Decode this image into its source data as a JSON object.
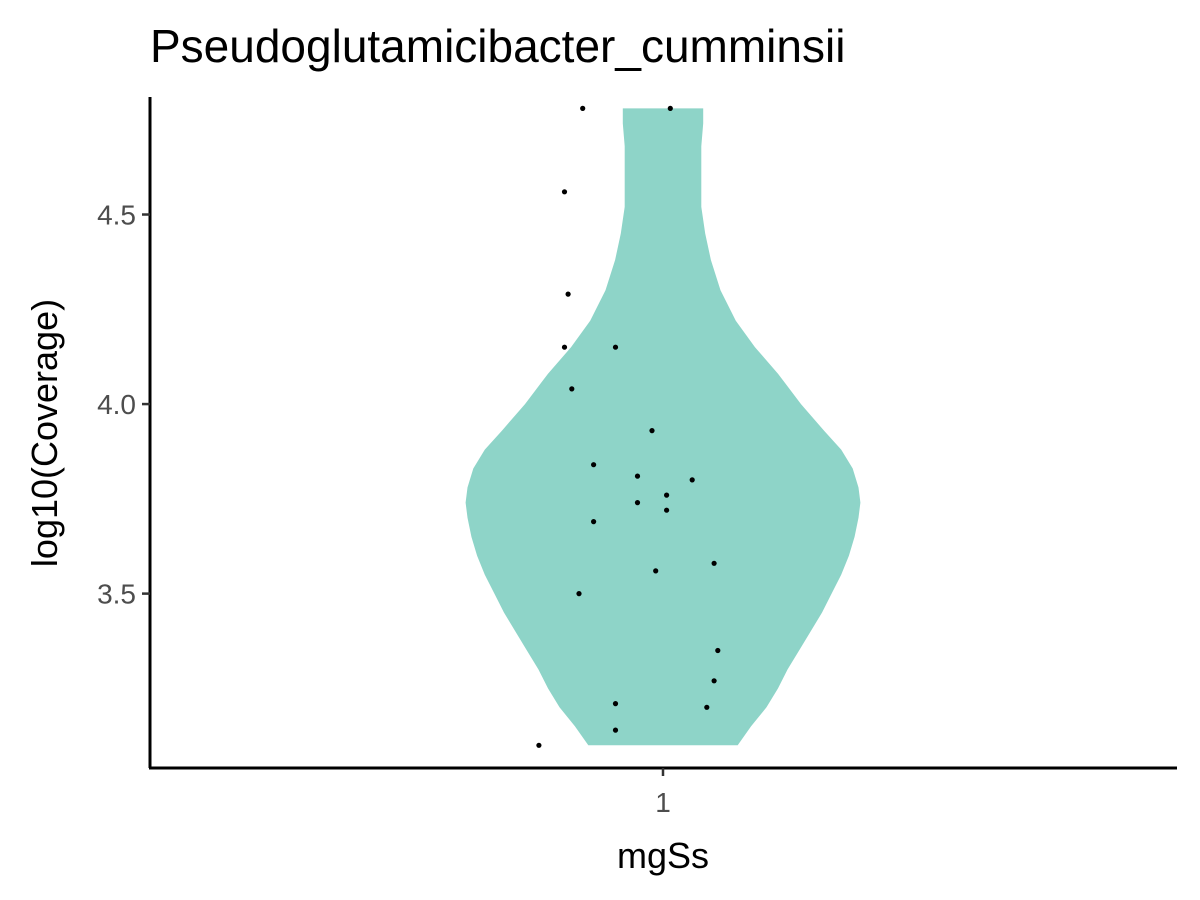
{
  "chart_data": {
    "type": "violin",
    "title": "Pseudoglutamicibacter_cumminsii",
    "xlabel": "mgSs",
    "ylabel": "log10(Coverage)",
    "categories": [
      "1"
    ],
    "y_ticks": [
      3.5,
      4.0,
      4.5
    ],
    "y_tick_labels": [
      "3.5",
      "4.0",
      "4.5"
    ],
    "ylim": [
      3.04,
      4.81
    ],
    "grid": false,
    "legend": "none",
    "violin_fill": "#8ed4c8",
    "point_color": "#000000",
    "violin_range": [
      3.1,
      4.78
    ],
    "violin_profile": [
      {
        "y": 3.1,
        "width": 0.39
      },
      {
        "y": 3.15,
        "width": 0.46
      },
      {
        "y": 3.2,
        "width": 0.54
      },
      {
        "y": 3.25,
        "width": 0.6
      },
      {
        "y": 3.3,
        "width": 0.65
      },
      {
        "y": 3.35,
        "width": 0.71
      },
      {
        "y": 3.4,
        "width": 0.77
      },
      {
        "y": 3.45,
        "width": 0.83
      },
      {
        "y": 3.5,
        "width": 0.88
      },
      {
        "y": 3.55,
        "width": 0.93
      },
      {
        "y": 3.6,
        "width": 0.97
      },
      {
        "y": 3.65,
        "width": 1.0
      },
      {
        "y": 3.7,
        "width": 1.02
      },
      {
        "y": 3.74,
        "width": 1.03
      },
      {
        "y": 3.78,
        "width": 1.02
      },
      {
        "y": 3.83,
        "width": 0.99
      },
      {
        "y": 3.88,
        "width": 0.93
      },
      {
        "y": 3.93,
        "width": 0.84
      },
      {
        "y": 4.0,
        "width": 0.72
      },
      {
        "y": 4.08,
        "width": 0.6
      },
      {
        "y": 4.15,
        "width": 0.48
      },
      {
        "y": 4.22,
        "width": 0.38
      },
      {
        "y": 4.3,
        "width": 0.3
      },
      {
        "y": 4.38,
        "width": 0.25
      },
      {
        "y": 4.45,
        "width": 0.22
      },
      {
        "y": 4.52,
        "width": 0.2
      },
      {
        "y": 4.6,
        "width": 0.2
      },
      {
        "y": 4.68,
        "width": 0.2
      },
      {
        "y": 4.74,
        "width": 0.21
      },
      {
        "y": 4.78,
        "width": 0.21
      }
    ],
    "points": [
      {
        "x": 0.78,
        "y": 4.78
      },
      {
        "x": 1.02,
        "y": 4.78
      },
      {
        "x": 0.73,
        "y": 4.56
      },
      {
        "x": 0.74,
        "y": 4.29
      },
      {
        "x": 0.73,
        "y": 4.15
      },
      {
        "x": 0.87,
        "y": 4.15
      },
      {
        "x": 0.75,
        "y": 4.04
      },
      {
        "x": 0.97,
        "y": 3.93
      },
      {
        "x": 0.81,
        "y": 3.84
      },
      {
        "x": 0.93,
        "y": 3.81
      },
      {
        "x": 1.08,
        "y": 3.8
      },
      {
        "x": 1.01,
        "y": 3.76
      },
      {
        "x": 0.93,
        "y": 3.74
      },
      {
        "x": 1.01,
        "y": 3.72
      },
      {
        "x": 0.81,
        "y": 3.69
      },
      {
        "x": 1.14,
        "y": 3.58
      },
      {
        "x": 0.98,
        "y": 3.56
      },
      {
        "x": 0.77,
        "y": 3.5
      },
      {
        "x": 1.15,
        "y": 3.35
      },
      {
        "x": 1.14,
        "y": 3.27
      },
      {
        "x": 0.87,
        "y": 3.21
      },
      {
        "x": 1.12,
        "y": 3.2
      },
      {
        "x": 0.87,
        "y": 3.14
      },
      {
        "x": 0.66,
        "y": 3.1
      }
    ]
  }
}
